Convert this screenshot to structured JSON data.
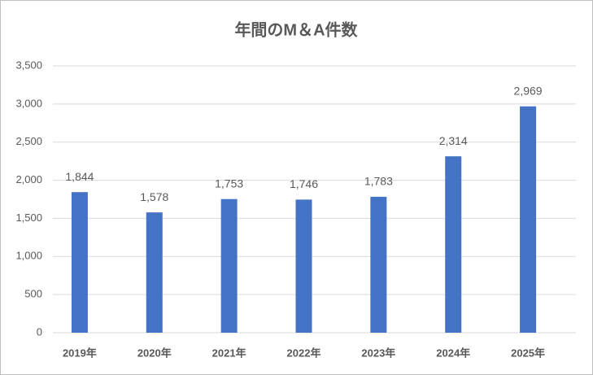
{
  "chart_data": {
    "type": "bar",
    "title": "年間のM＆A件数",
    "categories": [
      "2019年",
      "2020年",
      "2021年",
      "2022年",
      "2023年",
      "2024年",
      "2025年"
    ],
    "values": [
      1844,
      1578,
      1753,
      1746,
      1783,
      2314,
      2969
    ],
    "value_labels": [
      "1,844",
      "1,578",
      "1,753",
      "1,746",
      "1,783",
      "2,314",
      "2,969"
    ],
    "color": "#4472c4",
    "ylim": [
      0,
      3500
    ],
    "yticks": [
      0,
      500,
      {
        "value": 1000,
        "label": "1,000"
      },
      {
        "value": 1500,
        "label": "1,500"
      },
      {
        "value": 2000,
        "label": "2,000"
      },
      {
        "value": 2500,
        "label": "2,500"
      },
      {
        "value": 3000,
        "label": "3,000"
      },
      {
        "value": 3500,
        "label": "3,500"
      }
    ],
    "grid": true
  }
}
